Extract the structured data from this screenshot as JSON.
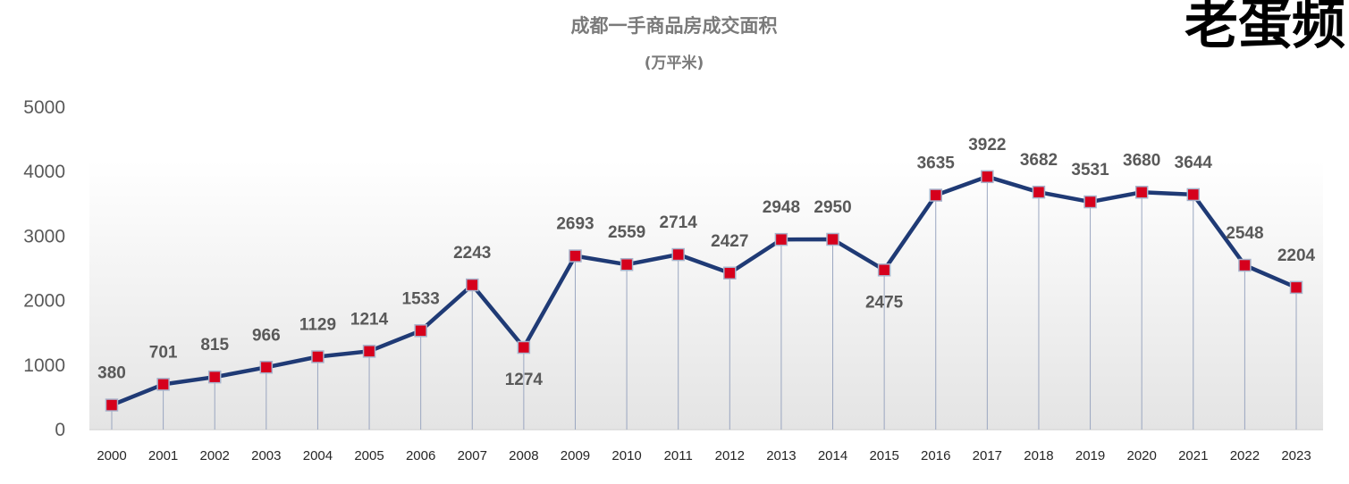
{
  "watermark": "老蛋频",
  "chart_data": {
    "type": "line",
    "title": "成都一手商品房成交面积",
    "subtitle": "(万平米)",
    "xlabel": "",
    "ylabel": "",
    "ylim": [
      0,
      5000
    ],
    "yticks": [
      "0",
      "1000",
      "2000",
      "3000",
      "4000",
      "5000"
    ],
    "grid": false,
    "legend": "none",
    "categories": [
      "2000",
      "2001",
      "2002",
      "2003",
      "2004",
      "2005",
      "2006",
      "2007",
      "2008",
      "2009",
      "2010",
      "2011",
      "2012",
      "2013",
      "2014",
      "2015",
      "2016",
      "2017",
      "2018",
      "2019",
      "2020",
      "2021",
      "2022",
      "2023"
    ],
    "series": [
      {
        "values": [
          380,
          701,
          815,
          966,
          1129,
          1214,
          1533,
          2243,
          1274,
          2693,
          2559,
          2714,
          2427,
          2948,
          2950,
          2475,
          3635,
          3922,
          3682,
          3531,
          3680,
          3644,
          2548,
          2204
        ],
        "labels": [
          "380",
          "701",
          "815",
          "966",
          "1129",
          "1214",
          "1533",
          "2243",
          "1274",
          "2693",
          "2559",
          "2714",
          "2427",
          "2948",
          "2950",
          "2475",
          "3635",
          "3922",
          "3682",
          "3531",
          "3680",
          "3644",
          "2548",
          "2204"
        ],
        "label_below": [
          "2008",
          "2015"
        ],
        "line_color": "#1f3a75",
        "marker_color": "#d6001c"
      }
    ]
  }
}
